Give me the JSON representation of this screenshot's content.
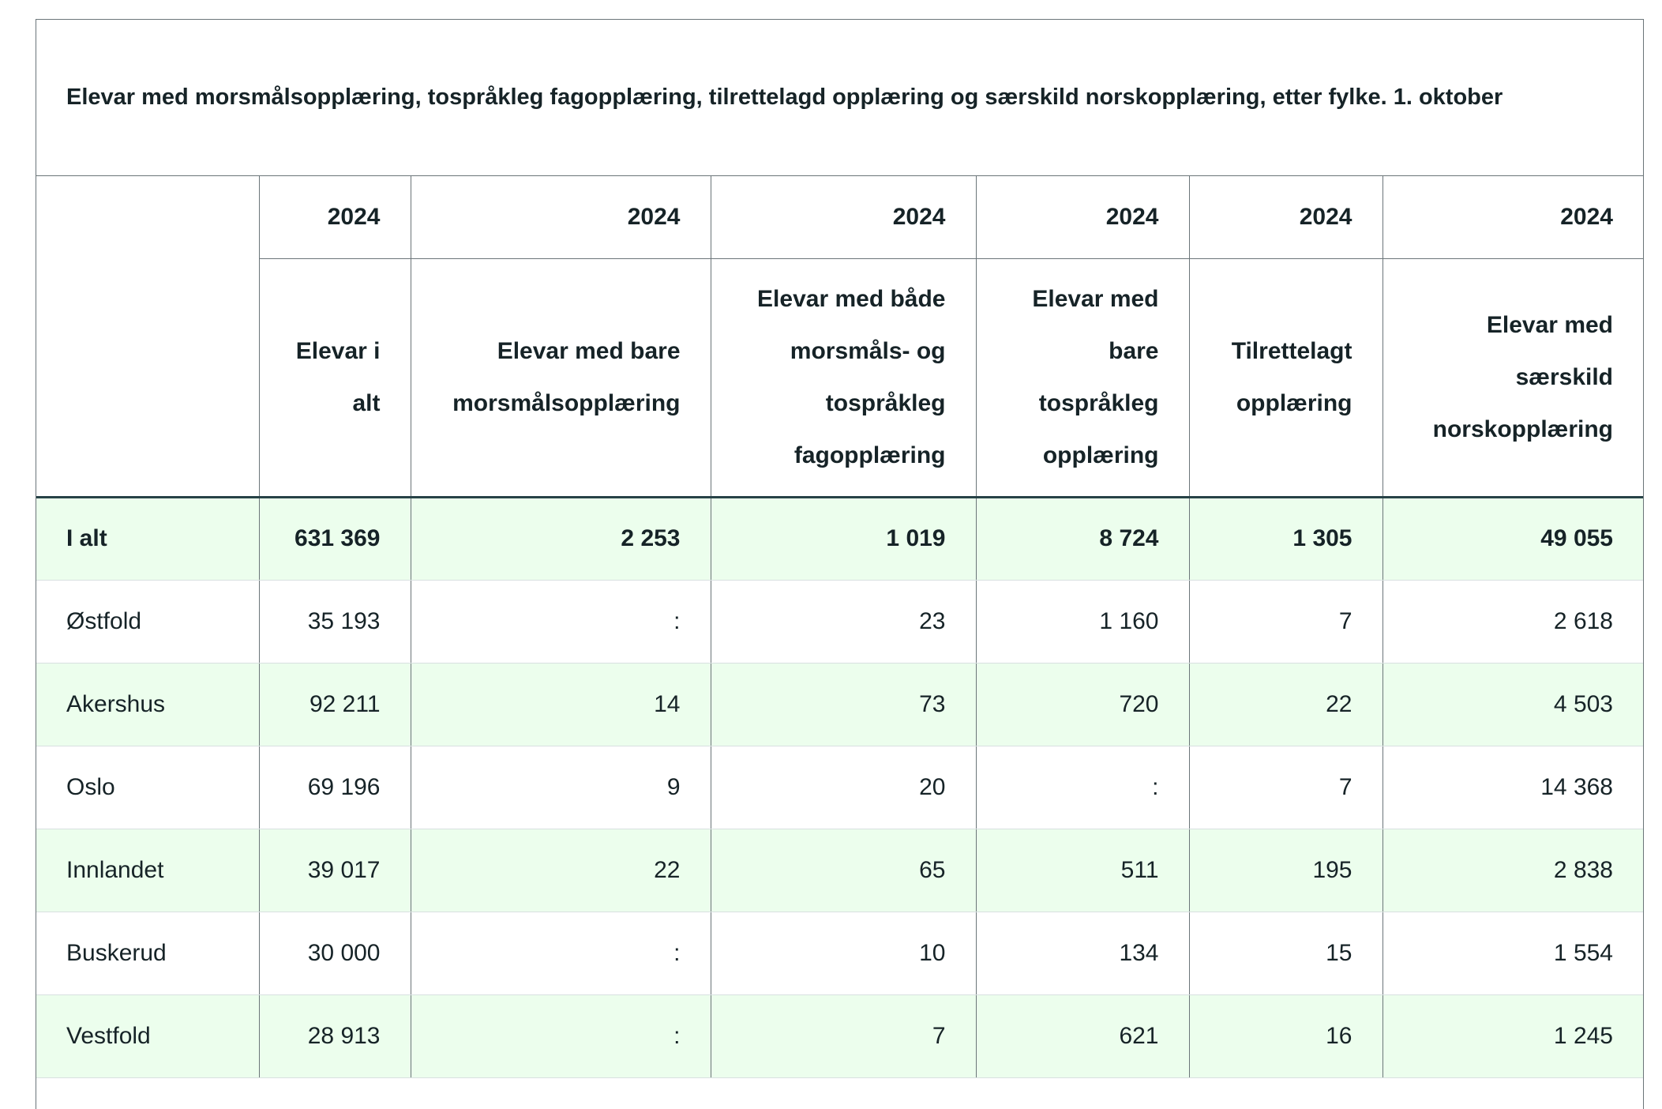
{
  "table": {
    "caption": "Elevar med morsmålsopplæring, tospråkleg fagopplæring, tilrettelagd opplæring og særskild norskopplæring, etter fylke. 1. oktober",
    "years": [
      "2024",
      "2024",
      "2024",
      "2024",
      "2024",
      "2024"
    ],
    "columns": [
      "Elevar i alt",
      "Elevar med bare morsmålsopplæring",
      "Elevar med både morsmåls- og tospråkleg fagopplæring",
      "Elevar med bare tospråkleg opplæring",
      "Tilrettelagt opplæring",
      "Elevar med særskild norskopplæring"
    ],
    "rows": [
      {
        "name": "I alt",
        "values": [
          "631 369",
          "2 253",
          "1 019",
          "8 724",
          "1 305",
          "49 055"
        ]
      },
      {
        "name": "Østfold",
        "values": [
          "35 193",
          ":",
          "23",
          "1 160",
          "7",
          "2 618"
        ]
      },
      {
        "name": "Akershus",
        "values": [
          "92 211",
          "14",
          "73",
          "720",
          "22",
          "4 503"
        ]
      },
      {
        "name": "Oslo",
        "values": [
          "69 196",
          "9",
          "20",
          ":",
          "7",
          "14 368"
        ]
      },
      {
        "name": "Innlandet",
        "values": [
          "39 017",
          "22",
          "65",
          "511",
          "195",
          "2 838"
        ]
      },
      {
        "name": "Buskerud",
        "values": [
          "30 000",
          ":",
          "10",
          "134",
          "15",
          "1 554"
        ]
      },
      {
        "name": "Vestfold",
        "values": [
          "28 913",
          ":",
          "7",
          "621",
          "16",
          "1 245"
        ]
      }
    ]
  }
}
